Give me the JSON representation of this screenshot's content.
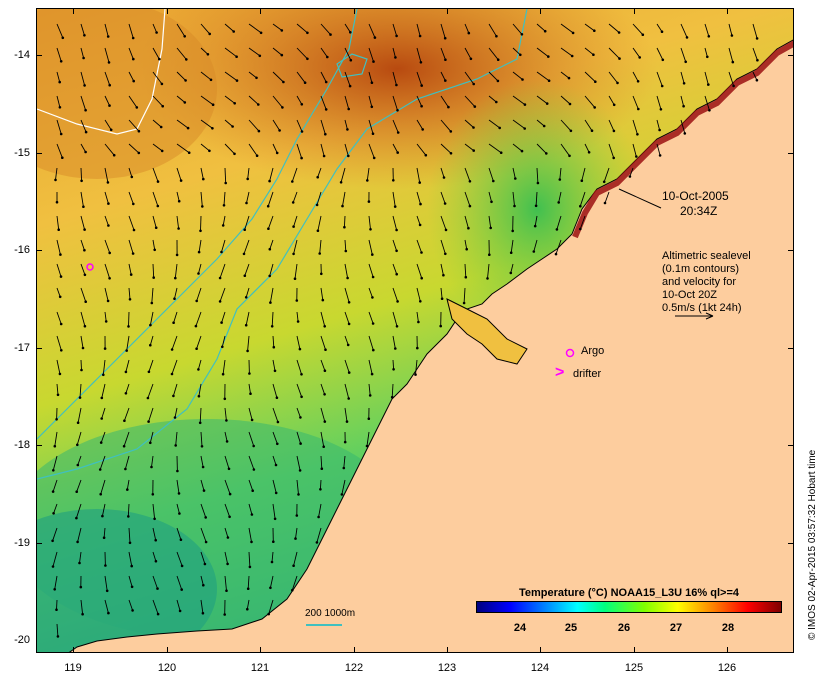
{
  "map": {
    "lat_labels": [
      {
        "value": "-14",
        "top": 0
      },
      {
        "value": "-15",
        "top": 0
      },
      {
        "value": "-16",
        "top": 0
      },
      {
        "value": "-17",
        "top": 0
      },
      {
        "value": "-18",
        "top": 0
      },
      {
        "value": "-19",
        "top": 0
      },
      {
        "value": "-20",
        "top": 0
      }
    ],
    "lon_labels": [
      "119",
      "120",
      "121",
      "122",
      "123",
      "124",
      "125",
      "126"
    ],
    "date": "10-Oct-2005",
    "time": "20:34Z",
    "legend_lines": [
      "Altimetric sealevel",
      "(0.1m contours)",
      "and velocity for",
      "10-Oct 20Z",
      "0.5m/s (1kt 24h)"
    ],
    "argo_label": "Argo",
    "drifter_label": "drifter",
    "drifter_symbol": ">",
    "scale_label": "200  1000m",
    "colorbar": {
      "title": "Temperature (°C) NOAA15_L3U 16% ql>=4",
      "ticks": [
        "24",
        "25",
        "26",
        "27",
        "28"
      ]
    },
    "credit": "© IMOS 02-Apr-2015 03:57:32 Hobart time",
    "colors": {
      "land": "#fdcd9e",
      "coast_red": "#9b1010",
      "argo": "#ff00ff",
      "isobath": "#40c0c0"
    }
  }
}
